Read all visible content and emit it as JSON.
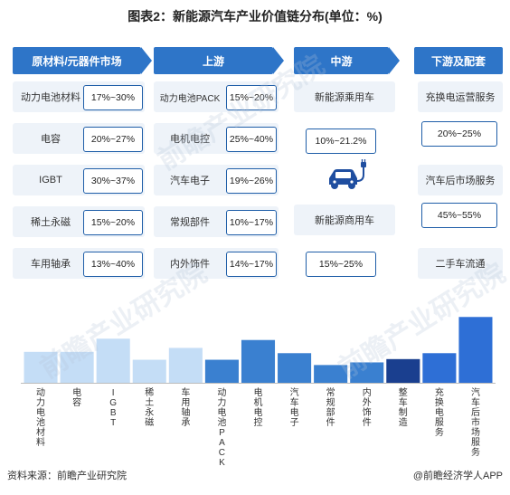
{
  "title": "图表2：新能源汽车产业价值链分布(单位：%)",
  "columns": [
    {
      "label": "原材料/元器件市场"
    },
    {
      "label": "上游"
    },
    {
      "label": "中游"
    },
    {
      "label": "下游及配套"
    }
  ],
  "raw_materials": [
    {
      "label": "动力电池材料",
      "range": "17%~30%"
    },
    {
      "label": "电容",
      "range": "20%~27%"
    },
    {
      "label": "IGBT",
      "range": "30%~37%"
    },
    {
      "label": "稀土永磁",
      "range": "15%~20%"
    },
    {
      "label": "车用轴承",
      "range": "13%~40%"
    }
  ],
  "upstream": [
    {
      "label": "动力电池PACK",
      "range": "15%~20%"
    },
    {
      "label": "电机电控",
      "range": "25%~40%"
    },
    {
      "label": "汽车电子",
      "range": "19%~26%"
    },
    {
      "label": "常规部件",
      "range": "10%~17%"
    },
    {
      "label": "内外饰件",
      "range": "14%~17%"
    }
  ],
  "midstream": {
    "passenger": "新能源乘用车",
    "passenger_range": "10%~21.2%",
    "commercial": "新能源商用车",
    "commercial_range": "15%~25%",
    "icon": "ev-charging-car-icon"
  },
  "downstream": [
    {
      "label": "充换电运营服务",
      "range": "20%~25%"
    },
    {
      "label": "汽车后市场服务",
      "range": "45%~55%"
    },
    {
      "label": "二手车流通",
      "range": ""
    }
  ],
  "chart_data": {
    "type": "bar",
    "categories": [
      "动力电池材料",
      "电容",
      "IGBT",
      "稀土永磁",
      "车用轴承",
      "动力电池PACK",
      "电机电控",
      "汽车电子",
      "常规部件",
      "内外饰件",
      "整车制造",
      "充换电服务",
      "汽车后市场服务"
    ],
    "values": [
      23.5,
      23.5,
      33.5,
      17.5,
      26.5,
      17.5,
      32.5,
      22.5,
      13.5,
      15.5,
      18,
      22.5,
      50
    ],
    "colors": [
      "#c4ddf6",
      "#c4ddf6",
      "#c4ddf6",
      "#c4ddf6",
      "#c4ddf6",
      "#3a80d0",
      "#3a80d0",
      "#3a80d0",
      "#3a80d0",
      "#3a80d0",
      "#1a3f8f",
      "#2e6fd6",
      "#2e6fd6"
    ],
    "ylim": [
      0,
      55
    ],
    "grid": false,
    "legend": "none",
    "title": "",
    "xlabel": "",
    "ylabel": ""
  },
  "footer": {
    "source": "资料来源：前瞻产业研究院",
    "brand": "@前瞻经济学人APP"
  },
  "watermark_text": "前瞻产业研究院"
}
